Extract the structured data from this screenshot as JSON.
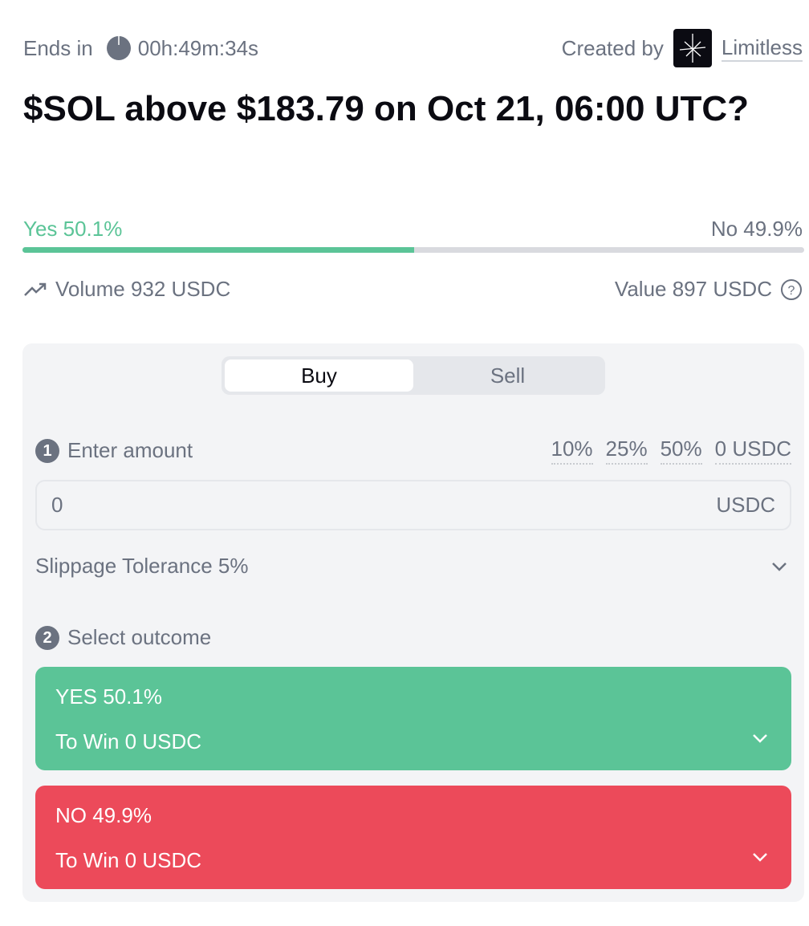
{
  "header": {
    "ends_label": "Ends in",
    "countdown": "00h:49m:34s",
    "created_label": "Created by",
    "creator": "Limitless"
  },
  "title": "$SOL above $183.79 on Oct 21, 06:00 UTC?",
  "odds": {
    "yes_label": "Yes 50.1%",
    "no_label": "No 49.9%",
    "yes_percent": 50.1,
    "yes_color": "#5bc497",
    "track_color": "#d9dadf"
  },
  "stats": {
    "volume": "Volume 932 USDC",
    "value": "Value 897 USDC"
  },
  "trade": {
    "tabs": [
      {
        "label": "Buy",
        "active": true
      },
      {
        "label": "Sell",
        "active": false
      }
    ],
    "step1": {
      "num": "1",
      "label": "Enter amount",
      "quick": [
        "10%",
        "25%",
        "50%",
        "0 USDC"
      ]
    },
    "amount": {
      "value": "0",
      "unit": "USDC"
    },
    "slippage": "Slippage Tolerance 5%",
    "step2": {
      "num": "2",
      "label": "Select outcome"
    },
    "yes": {
      "label": "YES 50.1%",
      "win": "To Win 0 USDC",
      "color": "#5bc497"
    },
    "no": {
      "label": "NO 49.9%",
      "win": "To Win 0 USDC",
      "color": "#ec4a5a"
    }
  }
}
